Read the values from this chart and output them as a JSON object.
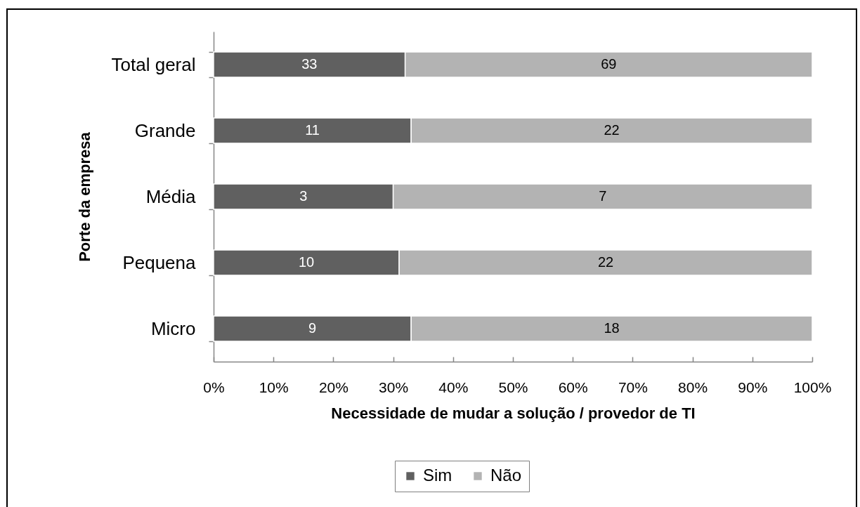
{
  "chart_data": {
    "type": "bar",
    "orientation": "horizontal",
    "stacked": true,
    "xlabel": "Necessidade de mudar a solução / provedor de TI",
    "ylabel": "Porte da empresa",
    "categories": [
      "Total geral",
      "Grande",
      "Média",
      "Pequena",
      "Micro"
    ],
    "series": [
      {
        "name": "Sim",
        "color": "#606060",
        "values": [
          32,
          33,
          30,
          31,
          33
        ]
      },
      {
        "name": "Não",
        "color": "#b3b3b3",
        "values": [
          68,
          67,
          70,
          69,
          67
        ]
      }
    ],
    "xlim": [
      0,
      100
    ],
    "xticks": [
      {
        "value": 0,
        "label": "0%"
      },
      {
        "value": 10,
        "label": "10%"
      },
      {
        "value": 20,
        "label": "20%"
      },
      {
        "value": 30,
        "label": "30%"
      },
      {
        "value": 40,
        "label": "40%"
      },
      {
        "value": 50,
        "label": "50%"
      },
      {
        "value": 60,
        "label": "60%"
      },
      {
        "value": 70,
        "label": "70%"
      },
      {
        "value": 80,
        "label": "80%"
      },
      {
        "value": 90,
        "label": "90%"
      },
      {
        "value": 100,
        "label": "100%"
      }
    ],
    "annotations": [
      "33",
      "69",
      "11",
      "22",
      "3",
      "7",
      "10",
      "22",
      "9",
      "18"
    ],
    "legend": "bottom"
  }
}
